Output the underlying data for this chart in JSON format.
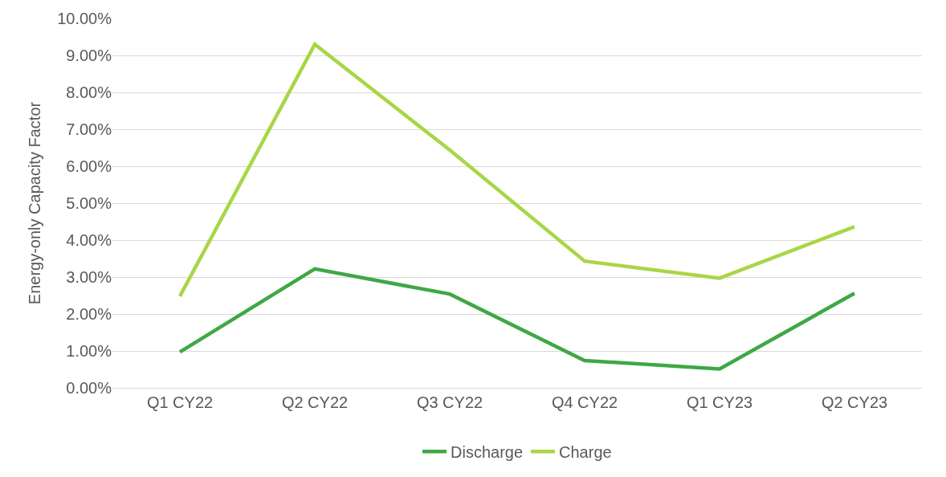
{
  "chart_data": {
    "type": "line",
    "ylabel": "Energy-only Capacity Factor",
    "categories": [
      "Q1 CY22",
      "Q2 CY22",
      "Q3 CY22",
      "Q4 CY22",
      "Q1 CY23",
      "Q2 CY23"
    ],
    "series": [
      {
        "name": "Discharge",
        "color": "#3fa845",
        "values": [
          0.97,
          3.22,
          2.54,
          0.74,
          0.51,
          2.56
        ]
      },
      {
        "name": "Charge",
        "color": "#a9d646",
        "values": [
          2.48,
          9.3,
          6.44,
          3.43,
          2.97,
          4.36
        ]
      }
    ],
    "ylim": [
      0,
      10
    ],
    "yticks": [
      {
        "value": 0,
        "label": "0.00%"
      },
      {
        "value": 1,
        "label": "1.00%"
      },
      {
        "value": 2,
        "label": "2.00%"
      },
      {
        "value": 3,
        "label": "3.00%"
      },
      {
        "value": 4,
        "label": "4.00%"
      },
      {
        "value": 5,
        "label": "5.00%"
      },
      {
        "value": 6,
        "label": "6.00%"
      },
      {
        "value": 7,
        "label": "7.00%"
      },
      {
        "value": 8,
        "label": "8.00%"
      },
      {
        "value": 9,
        "label": "9.00%"
      },
      {
        "value": 10,
        "label": "10.00%"
      }
    ],
    "grid": "y",
    "legend": "bottom",
    "marker": "none",
    "line_style": "solid"
  }
}
